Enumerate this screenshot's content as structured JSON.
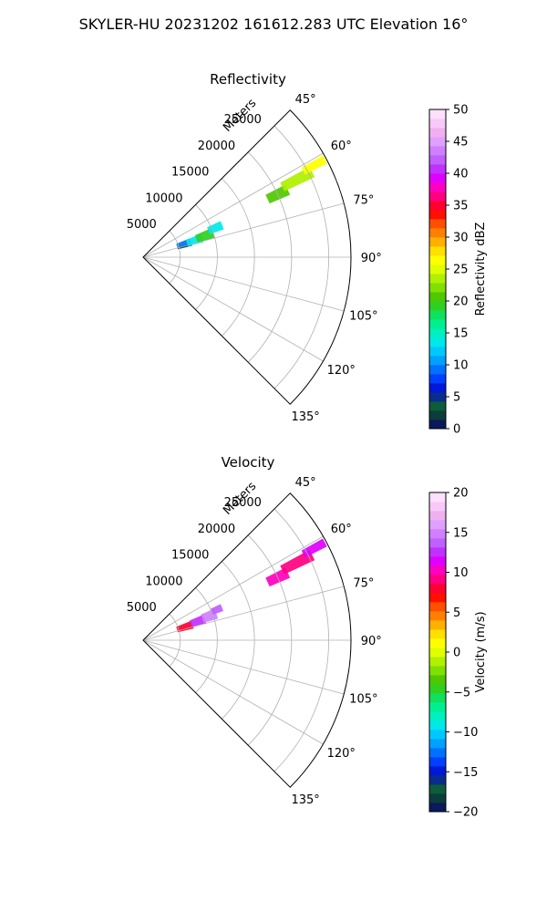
{
  "suptitle": "SKYLER-HU  20231202  161612.283 UTC Elevation 16°",
  "chart_data": [
    {
      "type": "polar-sector",
      "title": "Reflectivity",
      "range_label": "Meters",
      "angle_range_deg": [
        45,
        135
      ],
      "range_max": 28000,
      "range_ticks": [
        {
          "value": 5000,
          "label": "5000"
        },
        {
          "value": 10000,
          "label": "10000"
        },
        {
          "value": 15000,
          "label": "15000"
        },
        {
          "value": 20000,
          "label": "20000"
        },
        {
          "value": 25000,
          "label": "25000"
        }
      ],
      "angle_ticks": [
        {
          "value": 45,
          "label": "45°"
        },
        {
          "value": 60,
          "label": "60°"
        },
        {
          "value": 75,
          "label": "75°"
        },
        {
          "value": 90,
          "label": "90°"
        },
        {
          "value": 105,
          "label": "105°"
        },
        {
          "value": 120,
          "label": "120°"
        },
        {
          "value": 135,
          "label": "135°"
        }
      ],
      "grid": true,
      "colorbar": {
        "label": "Reflectivity dBZ",
        "vmin": 0,
        "vmax": 50,
        "ticks": [
          {
            "value": 0,
            "label": "0"
          },
          {
            "value": 5,
            "label": "5"
          },
          {
            "value": 10,
            "label": "10"
          },
          {
            "value": 15,
            "label": "15"
          },
          {
            "value": 20,
            "label": "20"
          },
          {
            "value": 25,
            "label": "25"
          },
          {
            "value": 30,
            "label": "30"
          },
          {
            "value": 35,
            "label": "35"
          },
          {
            "value": 40,
            "label": "40"
          },
          {
            "value": 45,
            "label": "45"
          },
          {
            "value": 50,
            "label": "50"
          }
        ],
        "colors": [
          "#0a1a5c",
          "#0b3d3b",
          "#0d5c3a",
          "#0a2c8c",
          "#0018d8",
          "#0040ff",
          "#0070ff",
          "#00a0ff",
          "#00c8ff",
          "#00e8e8",
          "#00f0c0",
          "#00f090",
          "#10e060",
          "#30d020",
          "#50c800",
          "#80e000",
          "#b0f000",
          "#e0ff00",
          "#ffff00",
          "#ffe000",
          "#ffb000",
          "#ff8000",
          "#ff5000",
          "#ff1000",
          "#ff0030",
          "#ff0080",
          "#ff00c0",
          "#e000ff",
          "#c030ff",
          "#c060ff",
          "#d080ff",
          "#e0a0ff",
          "#f0b0f0",
          "#f8c8f8",
          "#fce0fc"
        ]
      },
      "echoes": [
        {
          "azimuth": [
            68,
            77
          ],
          "range": [
            4800,
            6800
          ],
          "value": 9
        },
        {
          "azimuth": [
            68,
            76
          ],
          "range": [
            6200,
            8400
          ],
          "value": 13
        },
        {
          "azimuth": [
            67,
            75
          ],
          "range": [
            7600,
            10000
          ],
          "value": 19
        },
        {
          "azimuth": [
            65,
            71
          ],
          "range": [
            9500,
            11500
          ],
          "value": 14
        },
        {
          "azimuth": [
            74,
            77
          ],
          "range": [
            4800,
            6200
          ],
          "value": 4
        },
        {
          "azimuth": [
            63,
            67
          ],
          "range": [
            18500,
            21500
          ],
          "value": 21
        },
        {
          "azimuth": [
            61.5,
            65
          ],
          "range": [
            21000,
            25500
          ],
          "value": 24
        },
        {
          "azimuth": [
            60.5,
            63
          ],
          "range": [
            24500,
            27800
          ],
          "value": 26
        }
      ]
    },
    {
      "type": "polar-sector",
      "title": "Velocity",
      "range_label": "Meters",
      "angle_range_deg": [
        45,
        135
      ],
      "range_max": 28000,
      "range_ticks": [
        {
          "value": 5000,
          "label": "5000"
        },
        {
          "value": 10000,
          "label": "10000"
        },
        {
          "value": 15000,
          "label": "15000"
        },
        {
          "value": 20000,
          "label": "20000"
        },
        {
          "value": 25000,
          "label": "25000"
        }
      ],
      "angle_ticks": [
        {
          "value": 45,
          "label": "45°"
        },
        {
          "value": 60,
          "label": "60°"
        },
        {
          "value": 75,
          "label": "75°"
        },
        {
          "value": 90,
          "label": "90°"
        },
        {
          "value": 105,
          "label": "105°"
        },
        {
          "value": 120,
          "label": "120°"
        },
        {
          "value": 135,
          "label": "135°"
        }
      ],
      "grid": true,
      "colorbar": {
        "label": "Velocity (m/s)",
        "vmin": -20,
        "vmax": 20,
        "ticks": [
          {
            "value": -20,
            "label": "−20"
          },
          {
            "value": -15,
            "label": "−15"
          },
          {
            "value": -10,
            "label": "−10"
          },
          {
            "value": -5,
            "label": "−5"
          },
          {
            "value": 0,
            "label": "0"
          },
          {
            "value": 5,
            "label": "5"
          },
          {
            "value": 10,
            "label": "10"
          },
          {
            "value": 15,
            "label": "15"
          },
          {
            "value": 20,
            "label": "20"
          }
        ],
        "colors": [
          "#0a1a5c",
          "#0b3d3b",
          "#0d5c3a",
          "#0a2c8c",
          "#0018d8",
          "#0040ff",
          "#0070ff",
          "#00a0ff",
          "#00c8ff",
          "#00e8e8",
          "#00f0c0",
          "#00f090",
          "#10e060",
          "#30d020",
          "#50c800",
          "#80e000",
          "#b0f000",
          "#e0ff00",
          "#ffff00",
          "#ffe000",
          "#ffb000",
          "#ff8000",
          "#ff5000",
          "#ff1000",
          "#ff0030",
          "#ff0080",
          "#ff00c0",
          "#e000ff",
          "#c030ff",
          "#c060ff",
          "#d080ff",
          "#e0a0ff",
          "#f0b0f0",
          "#f8c8f8",
          "#fce0fc"
        ]
      },
      "echoes": [
        {
          "azimuth": [
            68,
            77
          ],
          "range": [
            4800,
            7000
          ],
          "value": 8
        },
        {
          "azimuth": [
            67,
            75
          ],
          "range": [
            6800,
            8800
          ],
          "value": 12
        },
        {
          "azimuth": [
            66,
            74
          ],
          "range": [
            8500,
            10500
          ],
          "value": 15
        },
        {
          "azimuth": [
            65,
            70
          ],
          "range": [
            10000,
            11500
          ],
          "value": 14
        },
        {
          "azimuth": [
            63,
            67
          ],
          "range": [
            18500,
            21500
          ],
          "value": 10
        },
        {
          "azimuth": [
            61.5,
            65
          ],
          "range": [
            21000,
            25500
          ],
          "value": 9
        },
        {
          "azimuth": [
            60.5,
            63
          ],
          "range": [
            24500,
            27800
          ],
          "value": 11
        }
      ]
    }
  ]
}
